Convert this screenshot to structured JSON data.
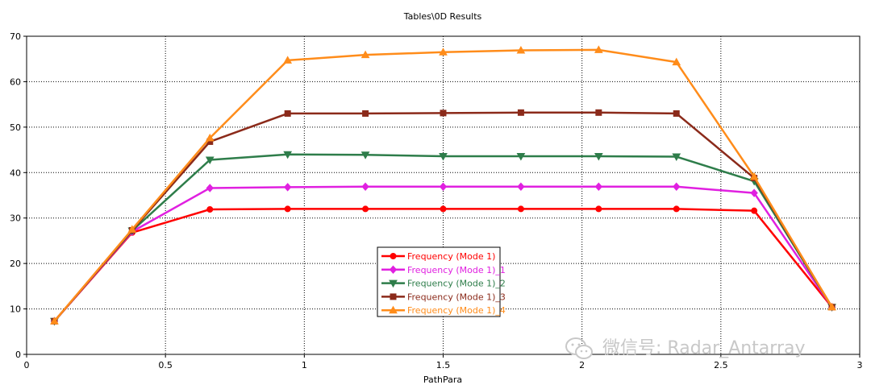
{
  "chart_data": {
    "type": "line",
    "title": "Tables\\0D Results",
    "xlabel": "PathPara",
    "ylabel": "",
    "xlim": [
      0,
      3
    ],
    "ylim": [
      0,
      70
    ],
    "xticks": [
      "0",
      "0.5",
      "1",
      "1.5",
      "2",
      "2.5",
      "3"
    ],
    "yticks": [
      "0",
      "10",
      "20",
      "30",
      "40",
      "50",
      "60",
      "70"
    ],
    "grid": true,
    "legend_position": "bottom-center",
    "x": [
      0.1,
      0.38,
      0.66,
      0.94,
      1.22,
      1.5,
      1.78,
      2.06,
      2.34,
      2.62,
      2.9
    ],
    "series": [
      {
        "name": "Frequency (Mode 1)",
        "color": "#ff0000",
        "marker": "circle",
        "values": [
          7.3,
          26.8,
          31.9,
          32.0,
          32.0,
          32.0,
          32.0,
          32.0,
          32.0,
          31.6,
          10.4
        ]
      },
      {
        "name": "Frequency (Mode 1)_1",
        "color": "#e020e0",
        "marker": "diamond",
        "values": [
          7.3,
          27.0,
          36.6,
          36.8,
          36.9,
          36.9,
          36.9,
          36.9,
          36.9,
          35.5,
          10.4
        ]
      },
      {
        "name": "Frequency (Mode 1)_2",
        "color": "#2e7d4a",
        "marker": "triangle-down",
        "values": [
          7.3,
          27.2,
          42.8,
          44.0,
          43.9,
          43.6,
          43.6,
          43.6,
          43.5,
          38.1,
          10.4
        ]
      },
      {
        "name": "Frequency (Mode 1)_3",
        "color": "#8b2a1a",
        "marker": "square",
        "values": [
          7.3,
          27.3,
          46.8,
          53.0,
          53.0,
          53.1,
          53.2,
          53.2,
          53.0,
          38.8,
          10.4
        ]
      },
      {
        "name": "Frequency (Mode 1)_4",
        "color": "#ff8c1a",
        "marker": "triangle-up",
        "values": [
          7.3,
          27.5,
          47.6,
          64.7,
          65.9,
          66.5,
          66.9,
          67.0,
          64.3,
          39.1,
          10.4
        ]
      }
    ]
  },
  "watermark": {
    "text": "微信号: Radar_Antarray",
    "icon": "wechat-icon"
  }
}
